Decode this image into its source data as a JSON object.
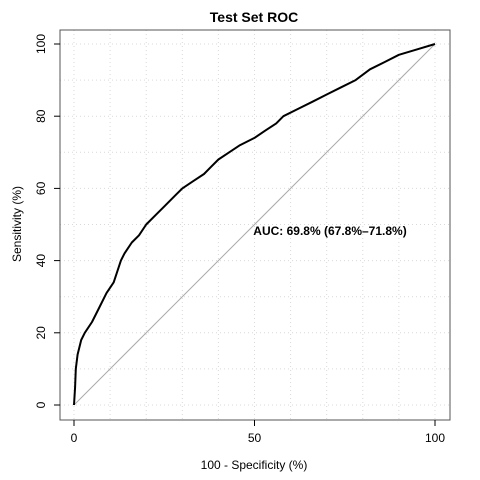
{
  "chart_data": {
    "type": "line",
    "title": "Test Set ROC",
    "xlabel": "100 - Specificity (%)",
    "ylabel": "Sensitivity (%)",
    "xlim": [
      0,
      100
    ],
    "ylim": [
      0,
      100
    ],
    "x_ticks": [
      "0",
      "50",
      "100"
    ],
    "y_ticks": [
      "0",
      "20",
      "40",
      "60",
      "80",
      "100"
    ],
    "grid": true,
    "annotation": "AUC: 69.8% (67.8%–71.8%)",
    "reference_line": {
      "x": [
        0,
        100
      ],
      "y": [
        0,
        100
      ],
      "color": "#aaaaaa"
    },
    "series": [
      {
        "color": "#000000",
        "points": [
          [
            0,
            0
          ],
          [
            0.3,
            5
          ],
          [
            0.5,
            10
          ],
          [
            1,
            14
          ],
          [
            2,
            18
          ],
          [
            3,
            20
          ],
          [
            5,
            23
          ],
          [
            7,
            27
          ],
          [
            9,
            31
          ],
          [
            11,
            34
          ],
          [
            12,
            37
          ],
          [
            13,
            40
          ],
          [
            14,
            42
          ],
          [
            16,
            45
          ],
          [
            18,
            47
          ],
          [
            20,
            50
          ],
          [
            23,
            53
          ],
          [
            25,
            55
          ],
          [
            28,
            58
          ],
          [
            30,
            60
          ],
          [
            33,
            62
          ],
          [
            36,
            64
          ],
          [
            38,
            66
          ],
          [
            40,
            68
          ],
          [
            43,
            70
          ],
          [
            46,
            72
          ],
          [
            50,
            74
          ],
          [
            53,
            76
          ],
          [
            56,
            78
          ],
          [
            58,
            80
          ],
          [
            62,
            82
          ],
          [
            66,
            84
          ],
          [
            70,
            86
          ],
          [
            74,
            88
          ],
          [
            78,
            90
          ],
          [
            82,
            93
          ],
          [
            86,
            95
          ],
          [
            90,
            97
          ],
          [
            95,
            98.5
          ],
          [
            100,
            100
          ]
        ]
      }
    ]
  }
}
